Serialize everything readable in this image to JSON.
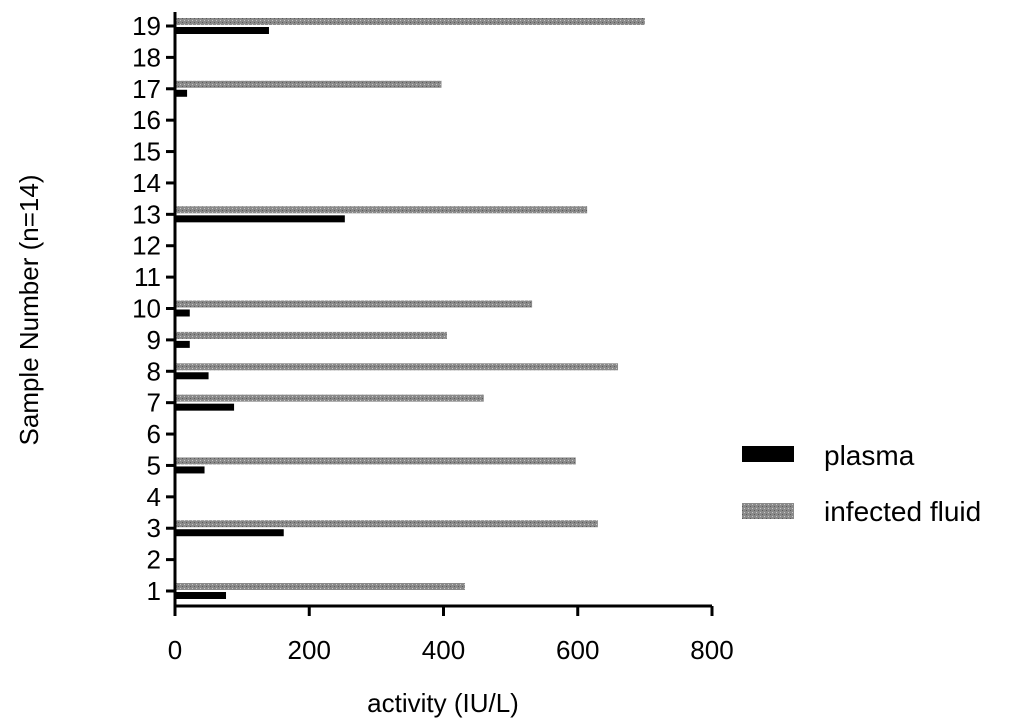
{
  "chart_data": {
    "type": "bar",
    "orientation": "horizontal",
    "title": "",
    "xlabel": "activity (IU/L)",
    "ylabel": "Sample Number (n=14)",
    "xlim": [
      0,
      800
    ],
    "x_ticks": [
      0,
      200,
      400,
      600,
      800
    ],
    "categories": [
      "1",
      "2",
      "3",
      "4",
      "5",
      "6",
      "7",
      "8",
      "9",
      "10",
      "11",
      "12",
      "13",
      "14",
      "15",
      "16",
      "17",
      "18",
      "19"
    ],
    "series": [
      {
        "name": "plasma",
        "color": "#000000",
        "values": [
          76,
          null,
          162,
          null,
          44,
          null,
          88,
          50,
          22,
          22,
          null,
          null,
          253,
          null,
          null,
          null,
          18,
          null,
          140
        ]
      },
      {
        "name": "infected fluid",
        "color": "#8a8a8a",
        "values": [
          432,
          null,
          630,
          null,
          597,
          null,
          460,
          660,
          405,
          532,
          null,
          null,
          614,
          null,
          null,
          null,
          397,
          null,
          700
        ]
      }
    ],
    "grid": false,
    "legend_position": "right"
  }
}
